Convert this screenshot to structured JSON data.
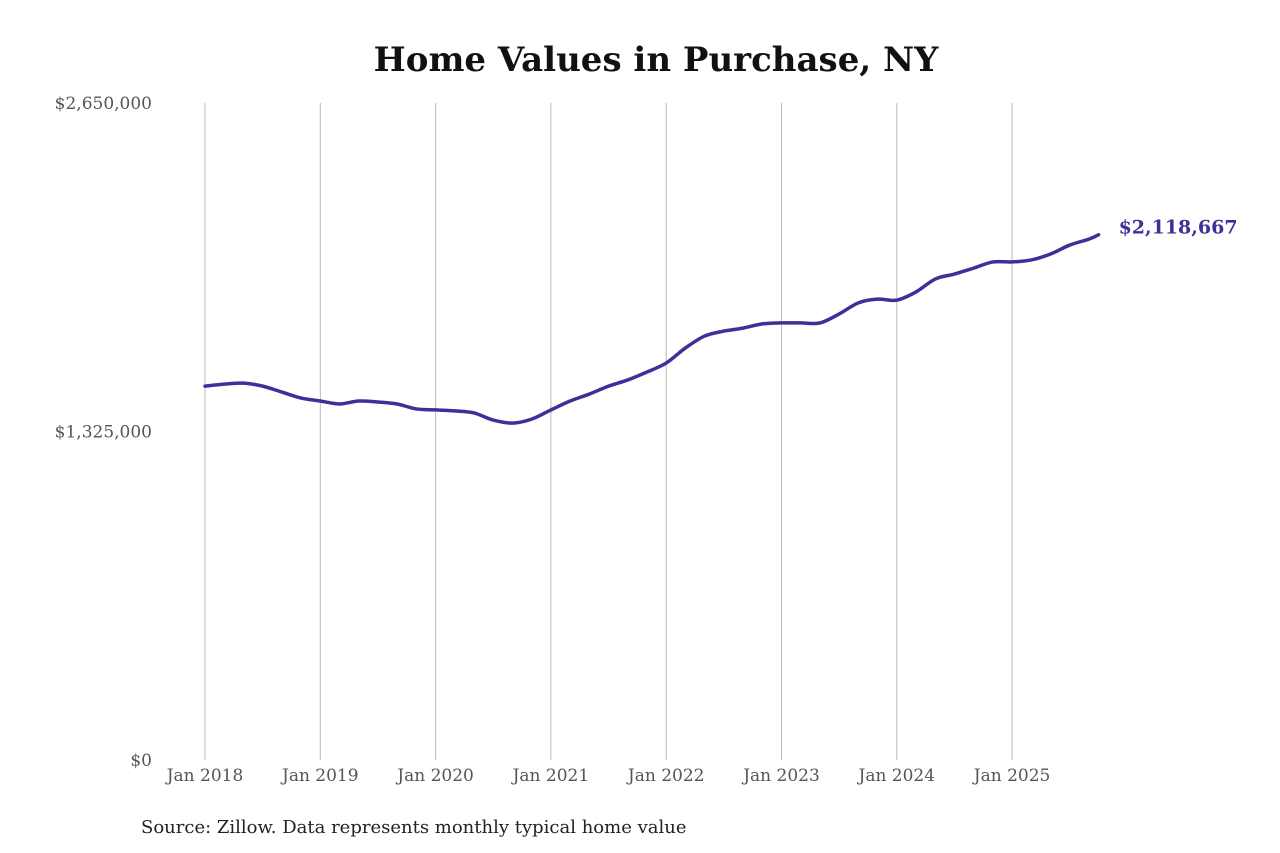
{
  "chart_data": {
    "type": "line",
    "title": "Home Values in Purchase, NY",
    "xlabel": "",
    "ylabel": "",
    "ylim": [
      0,
      2650000
    ],
    "yticks": [
      0,
      1325000,
      2650000
    ],
    "ytick_labels": [
      "$0",
      "$1,325,000",
      "$2,650,000"
    ],
    "xticks": [
      "2018-01",
      "2019-01",
      "2020-01",
      "2021-01",
      "2022-01",
      "2023-01",
      "2024-01",
      "2025-01"
    ],
    "xtick_labels": [
      "Jan 2018",
      "Jan 2019",
      "Jan 2020",
      "Jan 2021",
      "Jan 2022",
      "Jan 2023",
      "Jan 2024",
      "Jan 2025"
    ],
    "grid": "vertical",
    "line_color": "#3a3199",
    "end_label": "$2,118,667",
    "series": [
      {
        "x": [
          "2018-01",
          "2018-03",
          "2018-05",
          "2018-07",
          "2018-09",
          "2018-11",
          "2019-01",
          "2019-03",
          "2019-05",
          "2019-07",
          "2019-09",
          "2019-11",
          "2020-01",
          "2020-03",
          "2020-05",
          "2020-07",
          "2020-09",
          "2020-11",
          "2021-01",
          "2021-03",
          "2021-05",
          "2021-07",
          "2021-09",
          "2021-11",
          "2022-01",
          "2022-03",
          "2022-05",
          "2022-07",
          "2022-09",
          "2022-11",
          "2023-01",
          "2023-03",
          "2023-05",
          "2023-07",
          "2023-09",
          "2023-11",
          "2024-01",
          "2024-03",
          "2024-05",
          "2024-07",
          "2024-09",
          "2024-11",
          "2025-01",
          "2025-03",
          "2025-05",
          "2025-07",
          "2025-09",
          "2025-10"
        ],
        "values": [
          1508000,
          1516000,
          1520000,
          1508000,
          1484000,
          1460000,
          1448000,
          1436000,
          1448000,
          1444000,
          1436000,
          1416000,
          1412000,
          1408000,
          1400000,
          1371000,
          1359000,
          1375000,
          1412000,
          1448000,
          1476000,
          1508000,
          1533000,
          1565000,
          1601000,
          1662000,
          1710000,
          1730000,
          1742000,
          1759000,
          1763000,
          1763000,
          1763000,
          1799000,
          1844000,
          1859000,
          1855000,
          1888000,
          1940000,
          1960000,
          1984000,
          2009000,
          2009000,
          2017000,
          2041000,
          2077000,
          2101000,
          2118667
        ]
      }
    ]
  },
  "source": "Source: Zillow. Data represents monthly typical home value"
}
